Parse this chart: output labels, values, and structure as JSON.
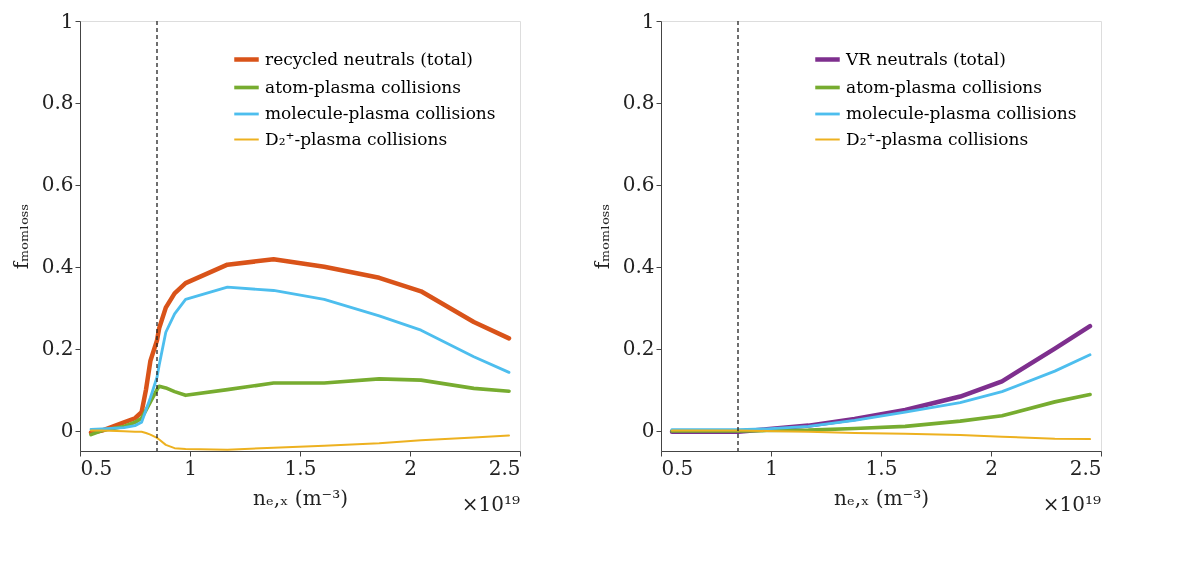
{
  "chart_data": [
    {
      "type": "line",
      "xlabel": "nₑ,ₓ (m⁻³)",
      "ylabel": "fₘₒₘₗₒₛₛ",
      "xlim": [
        0.5,
        2.5
      ],
      "ylim": [
        -0.05,
        1
      ],
      "xticks": [
        0.5,
        1,
        1.5,
        2,
        2.5
      ],
      "yticks": [
        0,
        0.2,
        0.4,
        0.6,
        0.8,
        1
      ],
      "legend": "top right",
      "annotations": [
        "×10¹⁹"
      ],
      "ref_lines": [
        {
          "axis": "x",
          "value": 0.85,
          "label": null,
          "color": "#222222",
          "line_style": "dashed"
        }
      ],
      "x": [
        0.55,
        0.6,
        0.7,
        0.75,
        0.78,
        0.8,
        0.82,
        0.85,
        0.86,
        0.89,
        0.93,
        0.98,
        1.17,
        1.38,
        1.61,
        1.86,
        2.05,
        2.29,
        2.45
      ],
      "series": [
        {
          "name": "recycled neutrals (total)",
          "color": "#d95319",
          "values": [
            -0.005,
            0.0,
            0.02,
            0.03,
            0.045,
            0.1,
            0.17,
            0.22,
            0.25,
            0.3,
            0.335,
            0.36,
            0.405,
            0.418,
            0.4,
            0.373,
            0.34,
            0.265,
            0.225
          ]
        },
        {
          "name": "atom-plasma collisions",
          "color": "#77ac30",
          "values": [
            -0.01,
            0.0,
            0.01,
            0.02,
            0.03,
            0.05,
            0.07,
            0.1,
            0.108,
            0.104,
            0.095,
            0.086,
            0.1,
            0.116,
            0.116,
            0.126,
            0.123,
            0.103,
            0.096
          ]
        },
        {
          "name": "molecule-plasma collisions",
          "color": "#4dbeee",
          "values": [
            0.003,
            0.004,
            0.007,
            0.012,
            0.02,
            0.05,
            0.08,
            0.13,
            0.16,
            0.24,
            0.285,
            0.32,
            0.35,
            0.342,
            0.32,
            0.28,
            0.245,
            0.18,
            0.142
          ]
        },
        {
          "name": "D₂⁺-plasma collisions",
          "color": "#edb120",
          "values": [
            0.0,
            0.0,
            -0.002,
            -0.003,
            -0.003,
            -0.006,
            -0.01,
            -0.018,
            -0.022,
            -0.035,
            -0.043,
            -0.045,
            -0.047,
            -0.042,
            -0.037,
            -0.031,
            -0.024,
            -0.017,
            -0.012
          ]
        }
      ]
    },
    {
      "type": "line",
      "xlabel": "nₑ,ₓ (m⁻³)",
      "ylabel": "fₘₒₘₗₒₛₛ",
      "xlim": [
        0.5,
        2.5
      ],
      "ylim": [
        -0.05,
        1
      ],
      "xticks": [
        0.5,
        1,
        1.5,
        2,
        2.5
      ],
      "yticks": [
        0,
        0.2,
        0.4,
        0.6,
        0.8,
        1
      ],
      "legend": "top right",
      "annotations": [
        "×10¹⁹"
      ],
      "ref_lines": [
        {
          "axis": "x",
          "value": 0.85,
          "label": null,
          "color": "#222222",
          "line_style": "dashed"
        }
      ],
      "x": [
        0.55,
        0.85,
        0.98,
        1.17,
        1.38,
        1.61,
        1.86,
        2.05,
        2.29,
        2.45
      ],
      "series": [
        {
          "name": "VR neutrals (total)",
          "color": "#7e2f8e",
          "values": [
            -0.003,
            -0.003,
            0.003,
            0.012,
            0.028,
            0.05,
            0.083,
            0.12,
            0.2,
            0.255
          ]
        },
        {
          "name": "atom-plasma collisions",
          "color": "#77ac30",
          "values": [
            -0.001,
            -0.001,
            0.0,
            0.001,
            0.005,
            0.01,
            0.023,
            0.036,
            0.07,
            0.088
          ]
        },
        {
          "name": "molecule-plasma collisions",
          "color": "#4dbeee",
          "values": [
            0.002,
            0.002,
            0.004,
            0.01,
            0.025,
            0.045,
            0.068,
            0.095,
            0.145,
            0.185
          ]
        },
        {
          "name": "D₂⁺-plasma collisions",
          "color": "#edb120",
          "values": [
            0.0,
            0.0,
            -0.001,
            -0.003,
            -0.006,
            -0.008,
            -0.011,
            -0.015,
            -0.02,
            -0.021
          ]
        }
      ]
    }
  ]
}
